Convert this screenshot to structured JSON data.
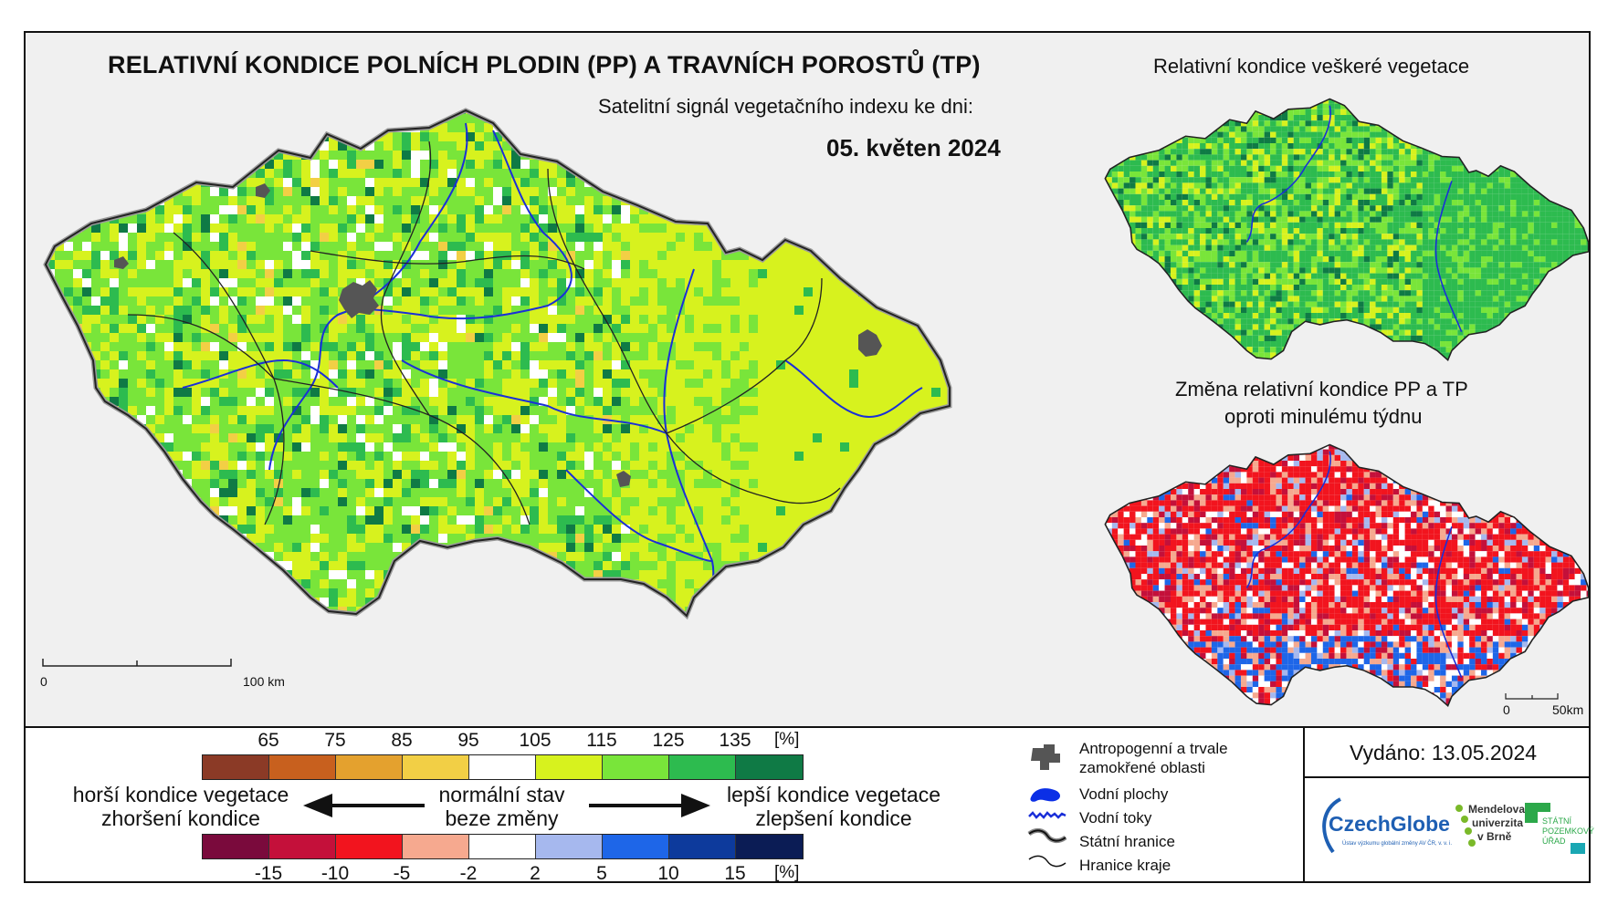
{
  "header": {
    "title": "RELATIVNÍ KONDICE POLNÍCH PLODIN (PP) A TRAVNÍCH POROSTŮ (TP)",
    "subtitle": "Satelitní signál vegetačního indexu ke dni:",
    "date": "05. květen 2024"
  },
  "insets": {
    "vegetation_title": "Relativní kondice veškeré vegetace",
    "change_title_line1": "Změna relativní kondice PP a TP",
    "change_title_line2": "oproti minulému týdnu"
  },
  "scalebars": {
    "main": {
      "start": "0",
      "end": "100 km"
    },
    "inset": {
      "start": "0",
      "end": "50km"
    }
  },
  "legend": {
    "condition": {
      "ticks": [
        "65",
        "75",
        "85",
        "95",
        "105",
        "115",
        "125",
        "135"
      ],
      "unit": "[%]",
      "colors": [
        "#8b3a26",
        "#c8601e",
        "#e4a12e",
        "#f2cf45",
        "#ffffff",
        "#d7f21e",
        "#79e53a",
        "#2dbb4f",
        "#0f7a45"
      ]
    },
    "change": {
      "ticks": [
        "-15",
        "-10",
        "-5",
        "-2",
        "2",
        "5",
        "10",
        "15"
      ],
      "unit": "[%]",
      "colors": [
        "#7a0a3c",
        "#c4103a",
        "#f2141e",
        "#f6a98f",
        "#ffffff",
        "#a6b8ee",
        "#1e66e8",
        "#0d3a9c",
        "#0b1c55"
      ]
    },
    "left_line1": "horší kondice vegetace",
    "left_line2": "zhoršení kondice",
    "center_line1": "normální stav",
    "center_line2": "beze změny",
    "right_line1": "lepší kondice vegetace",
    "right_line2": "zlepšení kondice"
  },
  "map_key": {
    "urban_line1": "Antropogenní a trvale",
    "urban_line2": "zamokřené oblasti",
    "water_bodies": "Vodní plochy",
    "rivers": "Vodní toky",
    "state_border": "Státní hranice",
    "region_border": "Hranice kraje"
  },
  "issued": "Vydáno: 13.05.2024",
  "logos": {
    "czechglobe": "CzechGlobe",
    "czechglobe_sub": "Ústav výzkumu globální změny AV ČR, v. v. i.",
    "mendel_line1": "Mendelova",
    "mendel_line2": "univerzita",
    "mendel_line3": "v Brně",
    "spu_line1": "STÁTNÍ",
    "spu_line2": "POZEMKOVÝ",
    "spu_line3": "ÚŘAD"
  },
  "map_colors": {
    "main_palette": [
      "#79e53a",
      "#d7f21e",
      "#2dbb4f",
      "#0f7a45",
      "#ffffff",
      "#f2cf45"
    ],
    "veg_palette": [
      "#2dbb4f",
      "#79e53a",
      "#d7f21e",
      "#0f7a45"
    ],
    "change_palette": [
      "#f2141e",
      "#c4103a",
      "#f6a98f",
      "#ffffff",
      "#a6b8ee",
      "#1e66e8"
    ],
    "river": "#1a2fd8",
    "urban": "#555555",
    "border": "#222222"
  }
}
